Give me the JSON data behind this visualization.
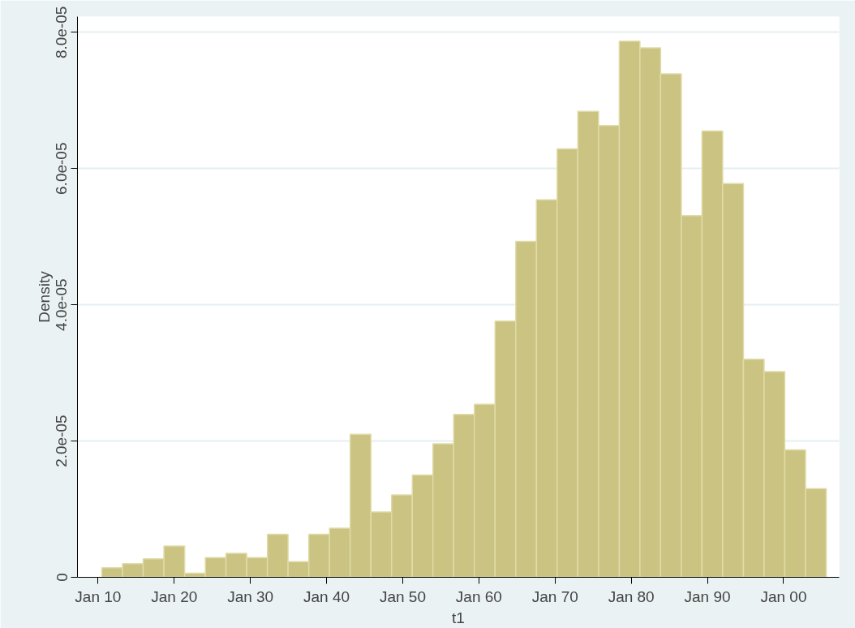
{
  "chart_data": {
    "type": "histogram",
    "xlabel": "t1",
    "ylabel": "Density",
    "color": "#cbc382",
    "bins": [
      "1910-07-01",
      "1913-03-20",
      "1915-12-06",
      "1918-08-26",
      "1921-05-15",
      "1924-02-02",
      "1926-10-19",
      "1929-07-08",
      "1932-03-28",
      "1934-12-13",
      "1937-09-02",
      "1940-05-22",
      "1943-02-06",
      "1945-10-27",
      "1948-07-16",
      "1951-04-05",
      "1953-12-20",
      "1956-09-09",
      "1959-05-30",
      "1962-02-14",
      "1964-11-03",
      "1967-07-24",
      "1970-04-10",
      "1972-12-28",
      "1975-09-17",
      "1978-06-07",
      "1981-02-21",
      "1983-11-10",
      "1986-07-31",
      "1989-04-16",
      "1992-01-05",
      "1994-09-24",
      "1997-06-10",
      "2000-02-28",
      "2002-11-18",
      "2005-08-08"
    ],
    "values": [
      1.4e-06,
      2e-06,
      2.7e-06,
      4.6e-06,
      6e-07,
      2.9e-06,
      3.5e-06,
      2.9e-06,
      6.3e-06,
      2.3e-06,
      6.3e-06,
      7.2e-06,
      2.1e-05,
      9.6e-06,
      1.21e-05,
      1.5e-05,
      1.96e-05,
      2.39e-05,
      2.54e-05,
      3.76e-05,
      4.93e-05,
      5.54e-05,
      6.29e-05,
      6.84e-05,
      6.63e-05,
      7.87e-05,
      7.77e-05,
      7.39e-05,
      5.31e-05,
      6.55e-05,
      5.78e-05,
      3.2e-05,
      3.02e-05,
      1.87e-05,
      1.3e-05
    ],
    "xlim": [
      "1907-04-20",
      "2007-04-20"
    ],
    "ylim": [
      0,
      8.23e-05
    ],
    "xticks": [
      {
        "value": "1910-01-01",
        "label": "Jan 10"
      },
      {
        "value": "1920-01-01",
        "label": "Jan 20"
      },
      {
        "value": "1930-01-01",
        "label": "Jan 30"
      },
      {
        "value": "1940-01-01",
        "label": "Jan 40"
      },
      {
        "value": "1950-01-01",
        "label": "Jan 50"
      },
      {
        "value": "1960-01-01",
        "label": "Jan 60"
      },
      {
        "value": "1970-01-01",
        "label": "Jan 70"
      },
      {
        "value": "1980-01-01",
        "label": "Jan 80"
      },
      {
        "value": "1990-01-01",
        "label": "Jan 90"
      },
      {
        "value": "2000-01-01",
        "label": "Jan 00"
      }
    ],
    "yticks": [
      0,
      {
        "value": 2e-05,
        "label": "2.0e-05"
      },
      {
        "value": 4e-05,
        "label": "4.0e-05"
      },
      {
        "value": 6e-05,
        "label": "6.0e-05"
      },
      {
        "value": 8e-05,
        "label": "8.0e-05"
      }
    ],
    "grid": "y"
  }
}
